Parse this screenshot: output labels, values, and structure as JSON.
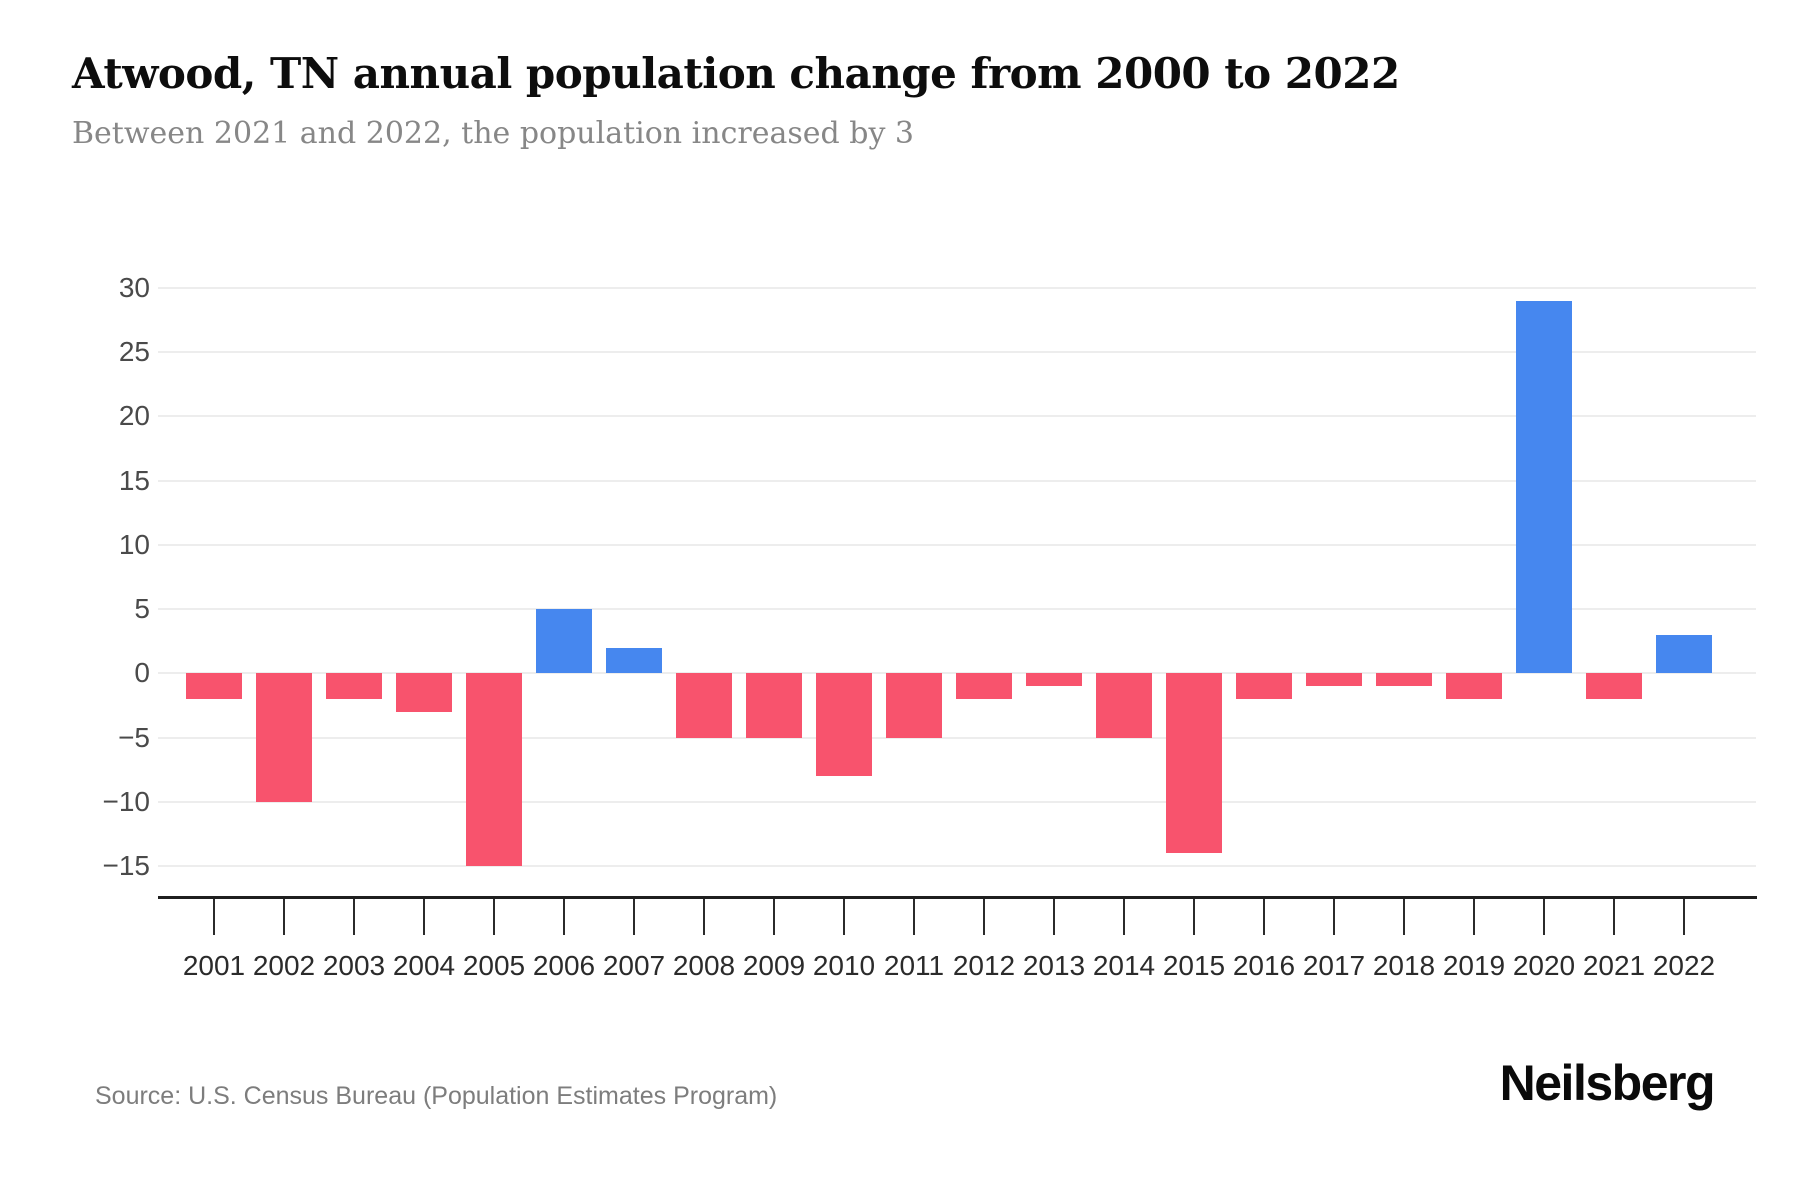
{
  "header": {
    "title": "Atwood, TN annual population change from 2000 to 2022",
    "subtitle": "Between 2021 and 2022, the population increased by 3"
  },
  "chart_data": {
    "type": "bar",
    "title": "Atwood, TN annual population change from 2000 to 2022",
    "categories": [
      "2001",
      "2002",
      "2003",
      "2004",
      "2005",
      "2006",
      "2007",
      "2008",
      "2009",
      "2010",
      "2011",
      "2012",
      "2013",
      "2014",
      "2015",
      "2016",
      "2017",
      "2018",
      "2019",
      "2020",
      "2021",
      "2022"
    ],
    "values": [
      -2,
      -10,
      -2,
      -3,
      -15,
      5,
      2,
      -5,
      -5,
      -8,
      -5,
      -2,
      -1,
      -5,
      -14,
      -2,
      -1,
      -1,
      -2,
      29,
      -2,
      3
    ],
    "xlabel": "",
    "ylabel": "",
    "ylim": [
      -15,
      30
    ],
    "yticks": [
      30,
      25,
      20,
      15,
      10,
      5,
      0,
      -5,
      -10,
      -15
    ],
    "grid": true,
    "legend": "none",
    "positive_color": "#4687EF",
    "negative_color": "#F8536D",
    "gridline_color": "#ededed"
  },
  "footer": {
    "source": "Source: U.S. Census Bureau (Population Estimates Program)",
    "brand": "Neilsberg"
  }
}
